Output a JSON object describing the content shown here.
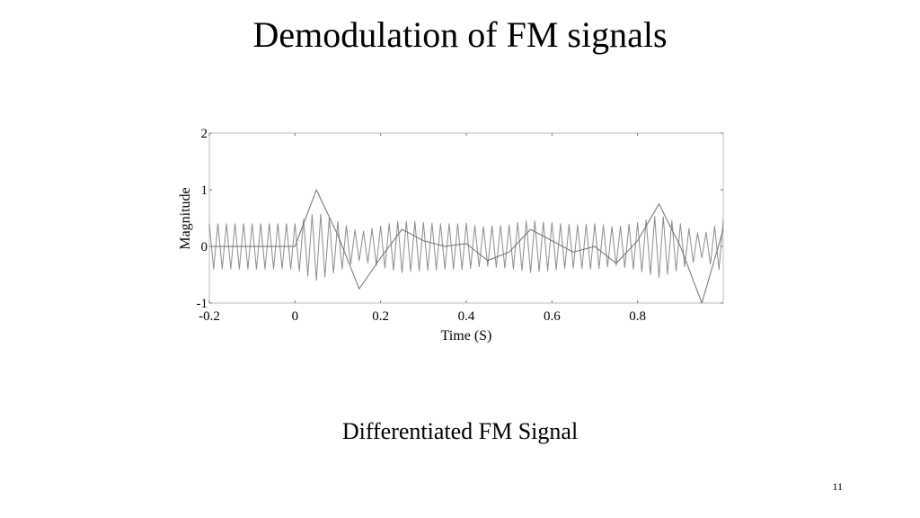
{
  "slide": {
    "title": "Demodulation of FM signals",
    "caption": "Differentiated FM Signal",
    "page_number": "11"
  },
  "chart_data": {
    "type": "line",
    "xlabel": "Time (S)",
    "ylabel": "Magnitude",
    "xlim": [
      -0.2,
      1.0
    ],
    "ylim": [
      -1,
      2
    ],
    "xticks": [
      -0.2,
      0,
      0.2,
      0.4,
      0.6,
      0.8
    ],
    "yticks": [
      -1,
      0,
      1,
      2
    ],
    "grid": false,
    "series": [
      {
        "color": "#8c8c8c",
        "x": [
          -0.2,
          -0.19,
          -0.18,
          -0.17,
          -0.16,
          -0.15,
          -0.14,
          -0.13,
          -0.12,
          -0.11,
          -0.1,
          -0.09,
          -0.08,
          -0.07,
          -0.06,
          -0.05,
          -0.04,
          -0.03,
          -0.02,
          -0.01,
          0,
          0.01,
          0.02,
          0.03,
          0.04,
          0.05,
          0.06,
          0.07,
          0.08,
          0.09,
          0.1,
          0.11,
          0.12,
          0.13,
          0.14,
          0.15,
          0.16,
          0.17,
          0.18,
          0.19,
          0.2,
          0.21,
          0.22,
          0.23,
          0.24,
          0.25,
          0.26,
          0.27,
          0.28,
          0.29,
          0.3,
          0.31,
          0.32,
          0.33,
          0.34,
          0.35,
          0.36,
          0.37,
          0.38,
          0.39,
          0.4,
          0.41,
          0.42,
          0.43,
          0.44,
          0.45,
          0.46,
          0.47,
          0.48,
          0.49,
          0.5,
          0.51,
          0.52,
          0.53,
          0.54,
          0.55,
          0.56,
          0.57,
          0.58,
          0.59,
          0.6,
          0.61,
          0.62,
          0.63,
          0.64,
          0.65,
          0.66,
          0.67,
          0.68,
          0.69,
          0.7,
          0.71,
          0.72,
          0.73,
          0.74,
          0.75,
          0.76,
          0.77,
          0.78,
          0.79,
          0.8,
          0.81,
          0.82,
          0.83,
          0.84,
          0.85,
          0.86,
          0.87,
          0.88,
          0.89,
          0.9,
          0.91,
          0.92,
          0.93,
          0.94,
          0.95,
          0.96,
          0.97,
          0.98,
          0.99,
          1.0
        ],
        "values": [
          0.4,
          -0.4,
          0.4,
          -0.4,
          0.4,
          -0.4,
          0.4,
          -0.4,
          0.4,
          -0.4,
          0.4,
          -0.4,
          0.4,
          -0.4,
          0.4,
          -0.4,
          0.4,
          -0.4,
          0.4,
          -0.4,
          0.4,
          -0.44,
          0.48,
          -0.52,
          0.56,
          -0.6,
          0.57,
          -0.54,
          0.5,
          -0.47,
          0.44,
          -0.4,
          0.37,
          -0.32,
          0.29,
          -0.25,
          0.27,
          -0.29,
          0.32,
          -0.34,
          0.36,
          -0.38,
          0.4,
          -0.42,
          0.44,
          -0.46,
          0.45,
          -0.44,
          0.44,
          -0.43,
          0.42,
          -0.42,
          0.41,
          -0.41,
          0.4,
          -0.4,
          0.4,
          -0.4,
          0.4,
          -0.41,
          0.41,
          -0.39,
          0.37,
          -0.36,
          0.35,
          -0.35,
          0.36,
          -0.37,
          0.37,
          -0.38,
          0.38,
          -0.4,
          0.42,
          -0.43,
          0.45,
          -0.46,
          0.45,
          -0.44,
          0.43,
          -0.43,
          0.42,
          -0.41,
          0.4,
          -0.39,
          0.39,
          -0.38,
          0.38,
          -0.39,
          0.39,
          -0.4,
          0.4,
          -0.39,
          0.38,
          -0.36,
          0.35,
          -0.34,
          0.36,
          -0.37,
          0.39,
          -0.4,
          0.42,
          -0.45,
          0.47,
          -0.5,
          0.53,
          -0.55,
          0.52,
          -0.49,
          0.46,
          -0.43,
          0.4,
          -0.36,
          0.32,
          -0.28,
          0.24,
          -0.2,
          0.25,
          -0.31,
          0.36,
          -0.41,
          0.46
        ]
      },
      {
        "color": "#6e6e6e",
        "x": [
          -0.2,
          -0.15,
          -0.1,
          -0.05,
          0,
          0.05,
          0.1,
          0.15,
          0.2,
          0.25,
          0.3,
          0.35,
          0.4,
          0.45,
          0.5,
          0.55,
          0.6,
          0.65,
          0.7,
          0.75,
          0.8,
          0.85,
          0.9,
          0.95,
          1.0
        ],
        "values": [
          0,
          0,
          0,
          0,
          0,
          1.0,
          0.2,
          -0.75,
          -0.2,
          0.3,
          0.1,
          0.0,
          0.05,
          -0.25,
          -0.1,
          0.3,
          0.1,
          -0.1,
          0.0,
          -0.3,
          0.1,
          0.75,
          0.0,
          -1.0,
          0.3
        ]
      }
    ]
  }
}
